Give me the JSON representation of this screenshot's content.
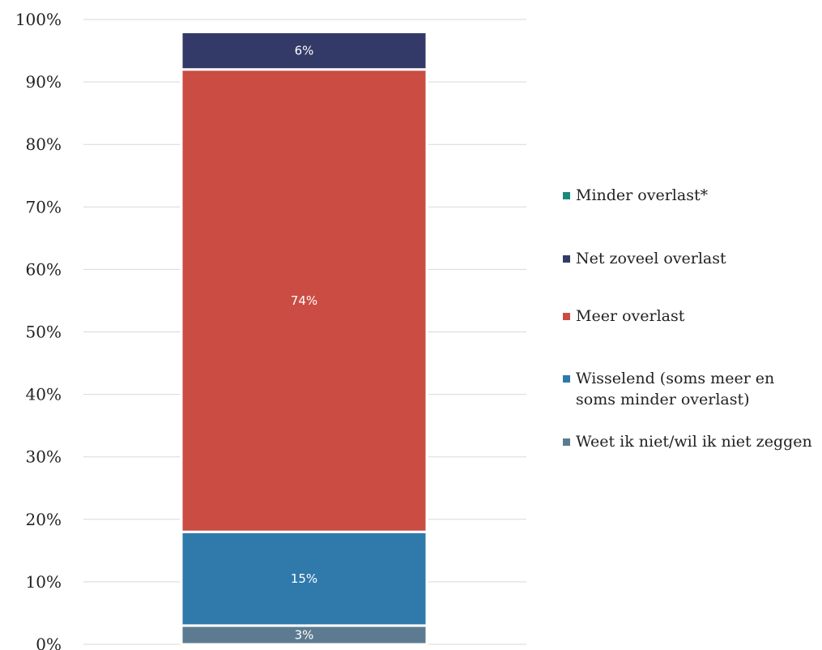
{
  "chart_data": {
    "type": "bar",
    "stacked": true,
    "percent_axis": true,
    "ylim": [
      0,
      100
    ],
    "yticks": [
      "0%",
      "10%",
      "20%",
      "30%",
      "40%",
      "50%",
      "60%",
      "70%",
      "80%",
      "90%",
      "100%"
    ],
    "grid": true,
    "legend_position": "right",
    "series": [
      {
        "name": "Minder overlast*",
        "value": 0,
        "label": "",
        "color": "#1a8a7a"
      },
      {
        "name": "Net zoveel overlast",
        "value": 6,
        "label": "6%",
        "color": "#343a68"
      },
      {
        "name": "Meer overlast",
        "value": 74,
        "label": "74%",
        "color": "#cb4c43"
      },
      {
        "name": "Wisselend (soms meer en soms minder overlast)",
        "value": 15,
        "label": "15%",
        "color": "#2f79ab"
      },
      {
        "name": "Weet ik niet/wil ik niet zeggen",
        "value": 3,
        "label": "3%",
        "color": "#5d7b90"
      }
    ],
    "stack_order_bottom_to_top": [
      4,
      3,
      2,
      1,
      0
    ]
  }
}
